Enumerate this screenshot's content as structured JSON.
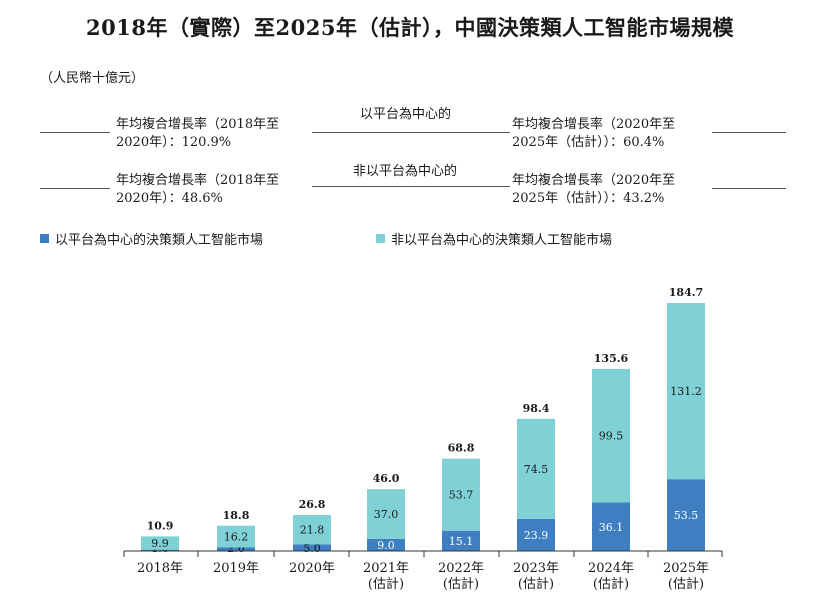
{
  "title": "2018年（實際）至2025年（估計），中國決策類人工智能市場規模",
  "unit_label": "（人民幣十億元）",
  "cagr": {
    "platform_label": "以平台為中心的",
    "non_platform_label": "非以平台為中心的",
    "platform_2018_2020": "年均複合增長率（2018年至\n2020年）：120.9%",
    "platform_2020_2025": "年均複合增長率（2020年至\n2025年（估計））：60.4%",
    "non_platform_2018_2020": "年均複合增長率（2018年至\n2020年）：48.6%",
    "non_platform_2020_2025": "年均複合增長率（2020年至\n2025年（估計））：43.2%"
  },
  "colors": {
    "platform": "#3f7fc1",
    "non_platform": "#7fd1d6"
  },
  "chart_data": {
    "type": "bar",
    "stacked": true,
    "categories": [
      "2018年",
      "2019年",
      "2020年",
      "2021年\n(估計)",
      "2022年\n(估計)",
      "2023年\n(估計)",
      "2024年\n(估計)",
      "2025年\n(估計)"
    ],
    "series": [
      {
        "name": "以平台為中心的決策類人工智能市場",
        "values": [
          1.0,
          2.6,
          5.0,
          9.0,
          15.1,
          23.9,
          36.1,
          53.5
        ]
      },
      {
        "name": "非以平台為中心的決策類人工智能市場",
        "values": [
          9.9,
          16.2,
          21.8,
          37.0,
          53.7,
          74.5,
          99.5,
          131.2
        ]
      }
    ],
    "totals": [
      10.9,
      18.8,
      26.8,
      46.0,
      68.8,
      98.4,
      135.6,
      184.7
    ],
    "ylim": [
      0,
      184.7
    ],
    "legend_position": "top-left"
  }
}
